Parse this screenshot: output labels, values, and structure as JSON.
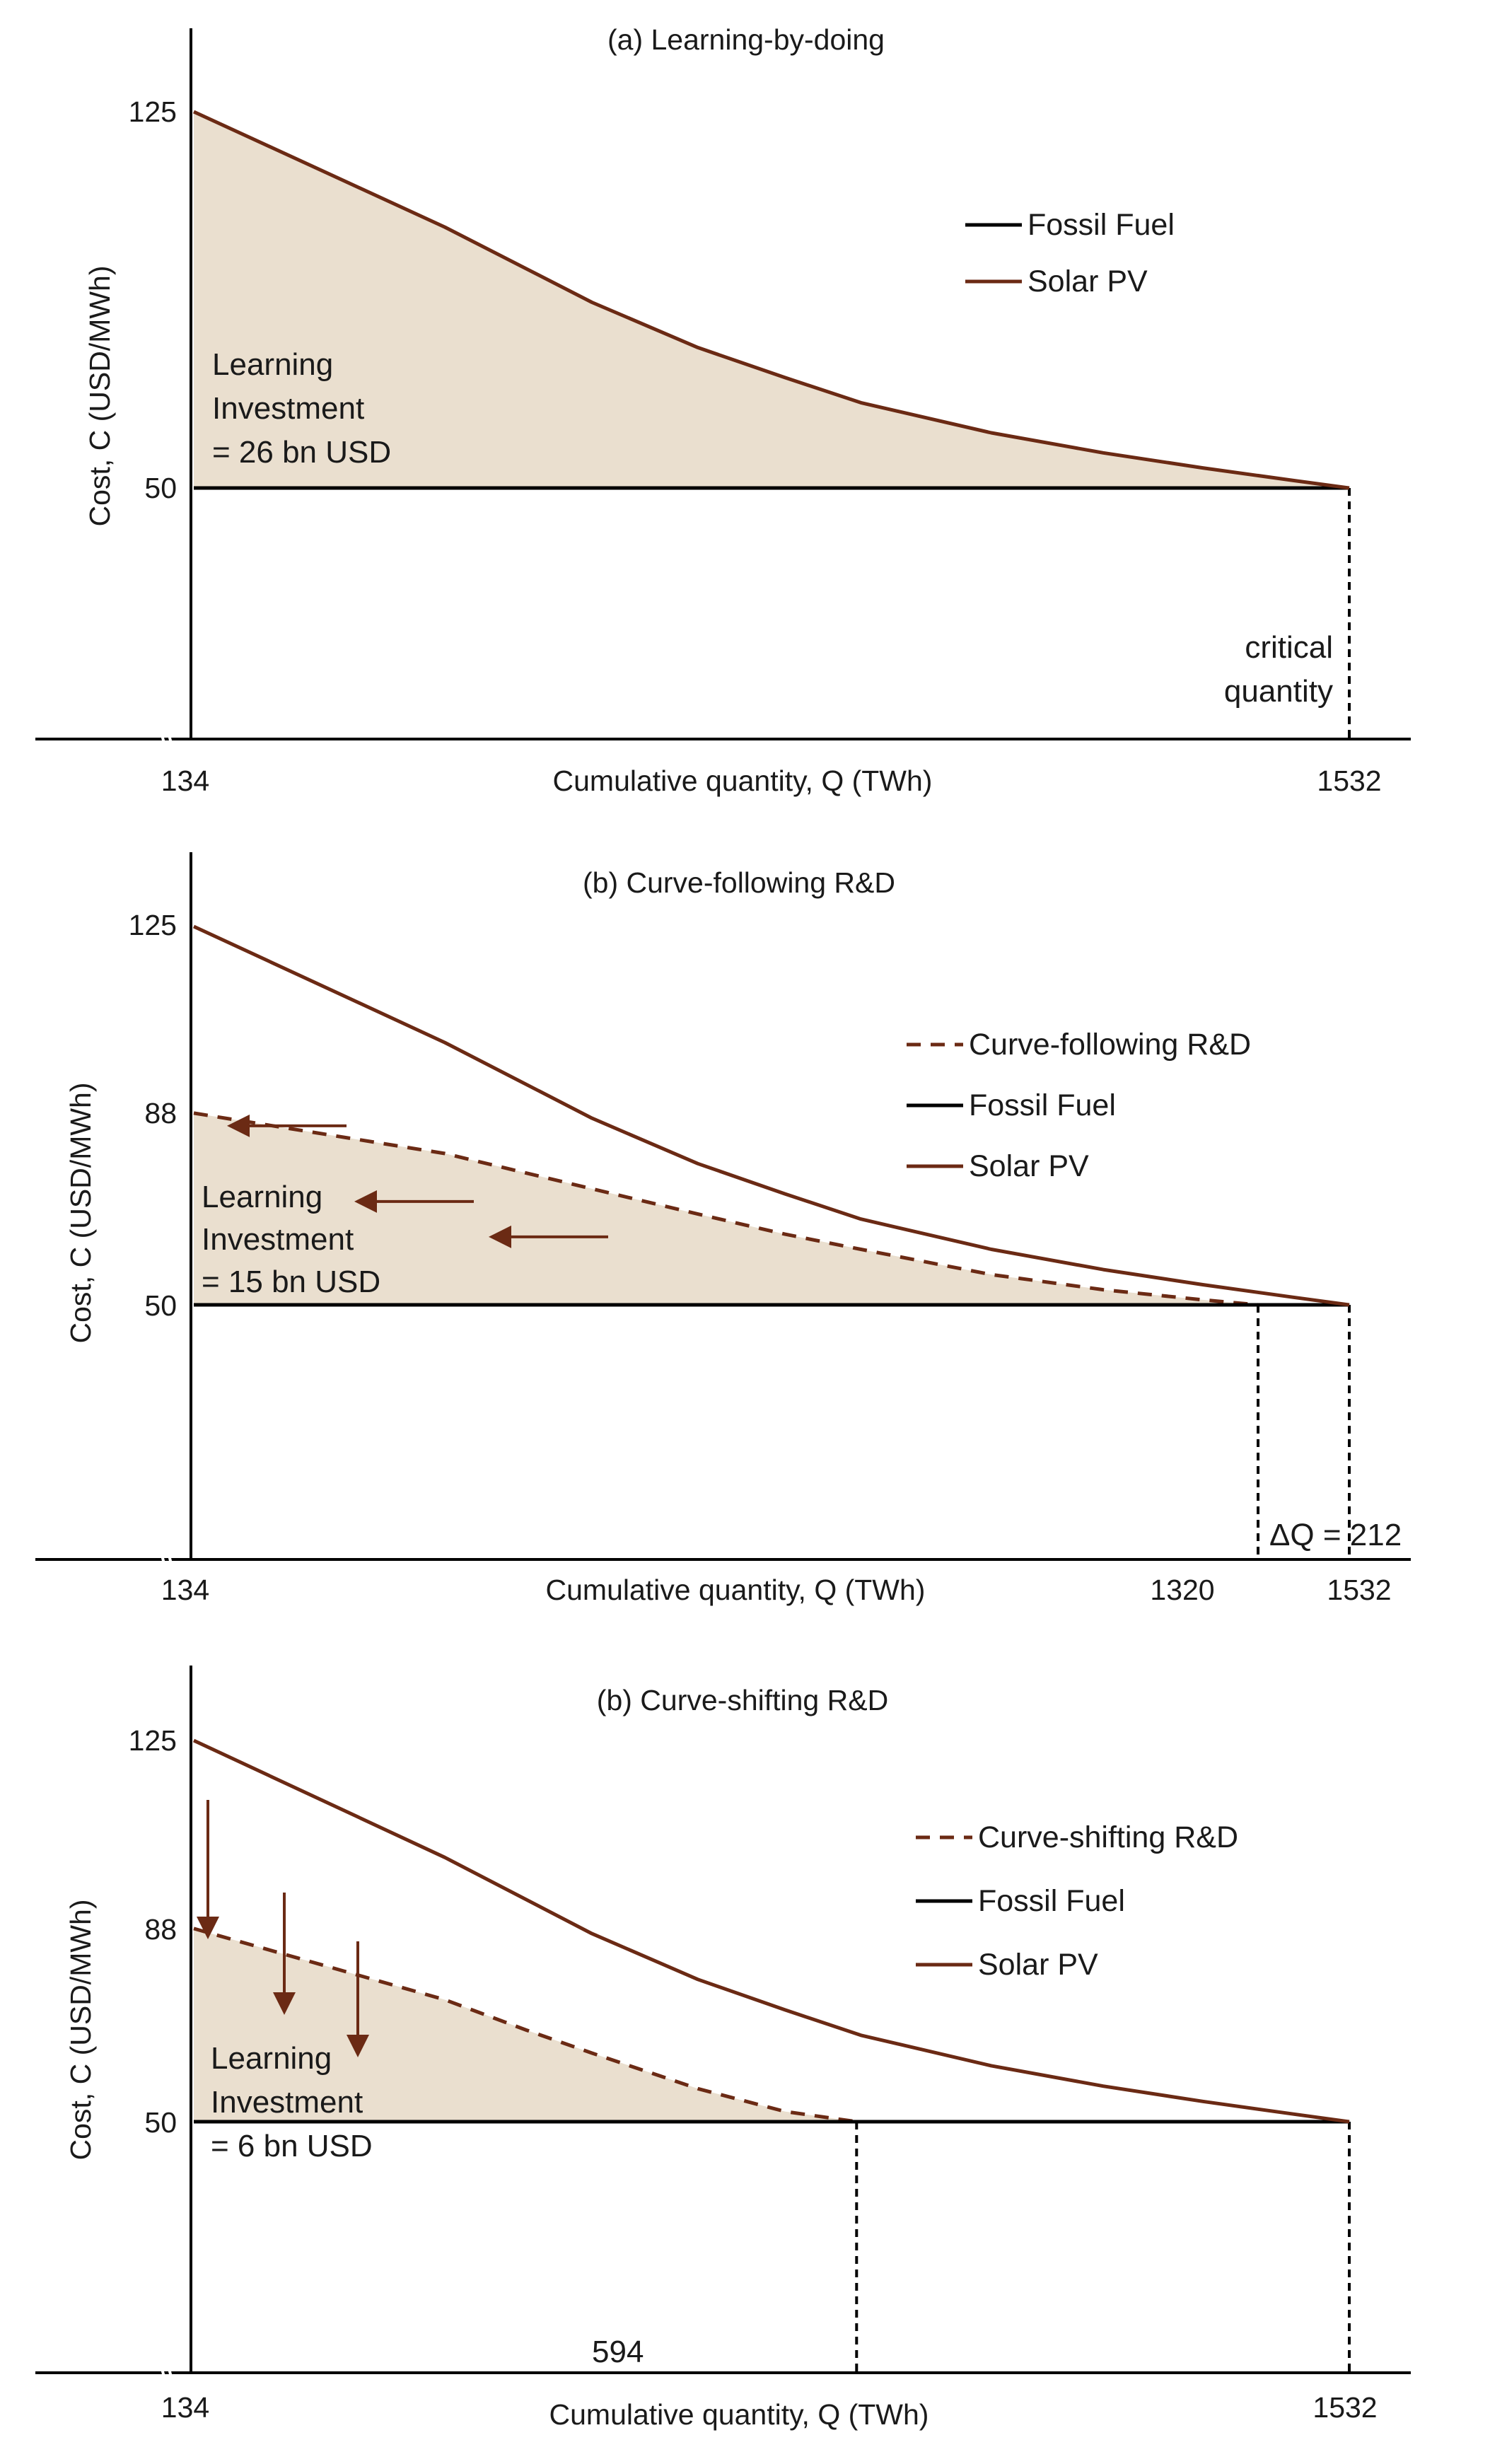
{
  "colors": {
    "solar": "#6b2a14",
    "fossil": "#000000",
    "area": "#eadfcf",
    "axis": "#000000",
    "text": "#1a1a1a"
  },
  "chart_data": [
    {
      "type": "line",
      "title": "(a)  Learning-by-doing",
      "xlabel": "Cumulative quantity, Q (TWh)",
      "ylabel": "Cost, C (USD/MWh)",
      "x_ticks": [
        "134",
        "1532"
      ],
      "y_ticks": [
        "50",
        "125"
      ],
      "xlim": [
        134,
        1532
      ],
      "series": [
        {
          "name": "Fossil Fuel",
          "style": "solid",
          "x": [
            134,
            1532
          ],
          "y": [
            50,
            50
          ]
        },
        {
          "name": "Solar PV",
          "style": "solid",
          "x": [
            134,
            200,
            300,
            400,
            500,
            600,
            800,
            1000,
            1200,
            1400,
            1532
          ],
          "y": [
            125,
            102,
            87,
            78,
            72,
            67,
            61,
            57,
            54,
            51.5,
            50
          ]
        }
      ],
      "shaded_area": {
        "between": [
          "Solar PV",
          "Fossil Fuel"
        ],
        "x_range": [
          134,
          1532
        ]
      },
      "annotations": [
        {
          "id": "investment",
          "lines": [
            "Learning",
            "Investment",
            "= 26 bn USD"
          ]
        },
        {
          "id": "critical",
          "lines": [
            "critical",
            "quantity"
          ],
          "at_x": 1532
        }
      ],
      "legend": {
        "placement": "top-right",
        "entries": [
          "Fossil Fuel",
          "Solar PV"
        ]
      }
    },
    {
      "type": "line",
      "title": "(b) Curve-following R&D",
      "xlabel": "Cumulative quantity, Q (TWh)",
      "ylabel": "Cost, C (USD/MWh)",
      "x_ticks": [
        "134",
        "1320",
        "1532"
      ],
      "y_ticks": [
        "50",
        "88",
        "125"
      ],
      "xlim": [
        134,
        1532
      ],
      "series": [
        {
          "name": "Curve-following R&D",
          "style": "dashed",
          "x": [
            134,
            200,
            300,
            400,
            500,
            600,
            800,
            1000,
            1200,
            1320
          ],
          "y": [
            88,
            80,
            73,
            68,
            64,
            61,
            56,
            53,
            51,
            50
          ]
        },
        {
          "name": "Fossil Fuel",
          "style": "solid",
          "x": [
            134,
            1532
          ],
          "y": [
            50,
            50
          ]
        },
        {
          "name": "Solar PV",
          "style": "solid",
          "x": [
            134,
            200,
            300,
            400,
            500,
            600,
            800,
            1000,
            1200,
            1400,
            1532
          ],
          "y": [
            125,
            102,
            87,
            78,
            72,
            67,
            61,
            57,
            54,
            51.5,
            50
          ]
        }
      ],
      "shaded_area": {
        "between": [
          "Curve-following R&D",
          "Fossil Fuel"
        ],
        "x_range": [
          134,
          1320
        ]
      },
      "arrows": "horizontal, from Solar PV toward Curve-following R&D",
      "annotations": [
        {
          "id": "investment",
          "lines": [
            "Learning",
            "Investment",
            "= 15 bn USD"
          ]
        },
        {
          "id": "delta",
          "lines": [
            "ΔQ = 212"
          ]
        }
      ],
      "legend": {
        "placement": "right",
        "entries": [
          "Curve-following R&D",
          "Fossil Fuel",
          "Solar PV"
        ]
      }
    },
    {
      "type": "line",
      "title": "(b) Curve-shifting R&D",
      "xlabel": "Cumulative quantity, Q (TWh)",
      "ylabel": "Cost, C (USD/MWh)",
      "x_ticks": [
        "134",
        "1532"
      ],
      "y_ticks": [
        "50",
        "88",
        "125"
      ],
      "xlim": [
        134,
        1532
      ],
      "series": [
        {
          "name": "Curve-shifting R&D",
          "style": "dashed",
          "x": [
            134,
            200,
            250,
            300,
            400,
            500,
            594
          ],
          "y": [
            88,
            74,
            68,
            63.5,
            56.5,
            52,
            50
          ]
        },
        {
          "name": "Fossil Fuel",
          "style": "solid",
          "x": [
            134,
            1532
          ],
          "y": [
            50,
            50
          ]
        },
        {
          "name": "Solar PV",
          "style": "solid",
          "x": [
            134,
            200,
            300,
            400,
            500,
            600,
            800,
            1000,
            1200,
            1400,
            1532
          ],
          "y": [
            125,
            102,
            87,
            78,
            72,
            67,
            61,
            57,
            54,
            51.5,
            50
          ]
        }
      ],
      "shaded_area": {
        "between": [
          "Curve-shifting R&D",
          "Fossil Fuel"
        ],
        "x_range": [
          134,
          594
        ]
      },
      "arrows": "vertical, from Solar PV down toward Curve-shifting R&D",
      "annotations": [
        {
          "id": "investment",
          "lines": [
            "Learning",
            "Investment",
            "= 6 bn USD"
          ]
        },
        {
          "id": "q",
          "lines": [
            "594"
          ],
          "at_x": 594
        }
      ],
      "legend": {
        "placement": "right",
        "entries": [
          "Curve-shifting R&D",
          "Fossil Fuel",
          "Solar PV"
        ]
      }
    }
  ]
}
